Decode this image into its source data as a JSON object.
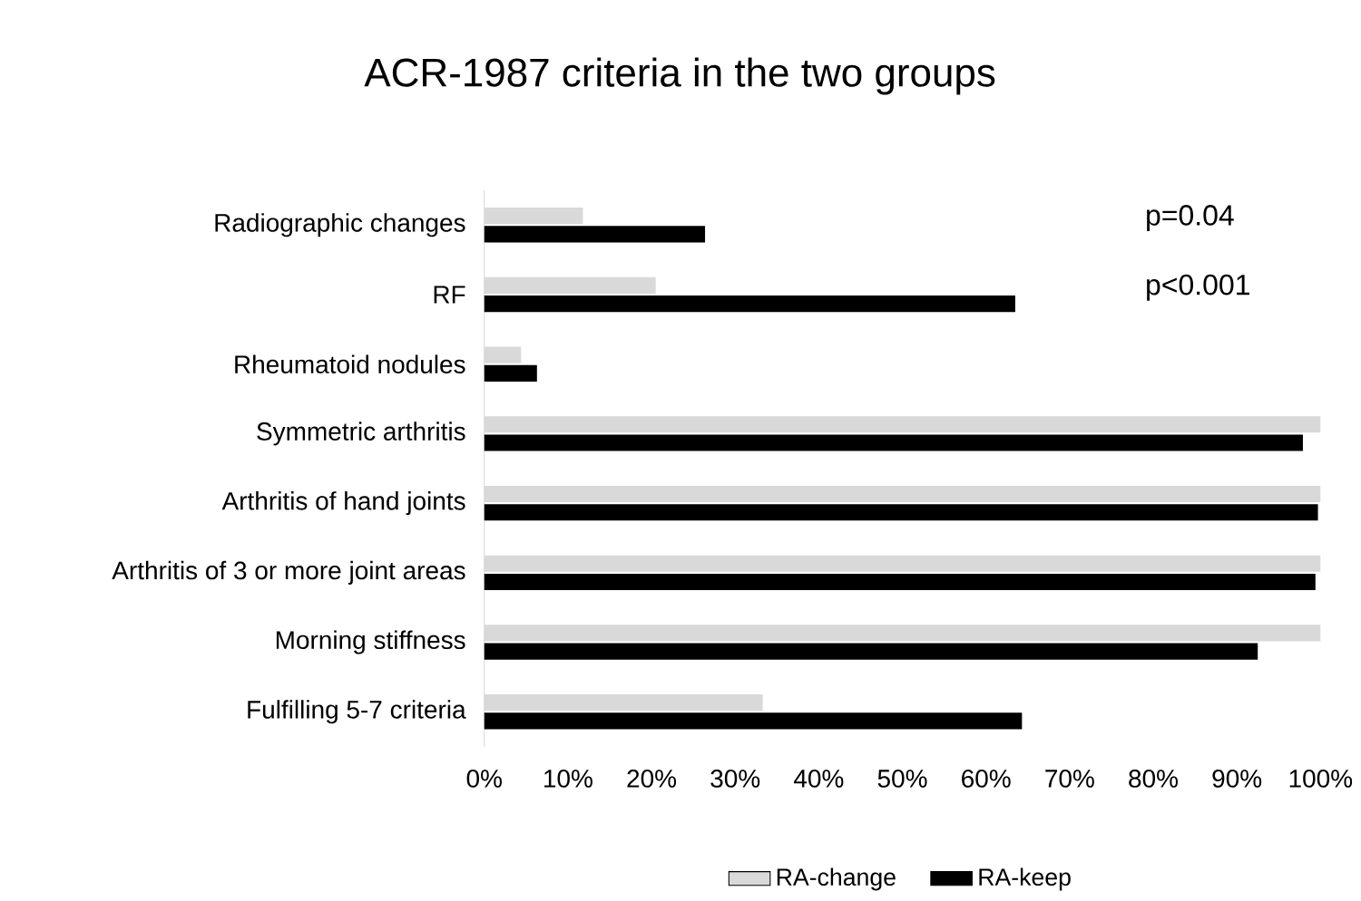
{
  "chart_data": {
    "type": "bar",
    "orientation": "horizontal",
    "title": "ACR-1987 criteria in the two groups",
    "categories": [
      "Radiographic changes",
      "RF",
      "Rheumatoid nodules",
      "Symmetric arthritis",
      "Arthritis of hand joints",
      "Arthritis of 3 or more joint areas",
      "Morning stiffness",
      "Fulfilling 5-7 criteria"
    ],
    "series": [
      {
        "name": "RA-change",
        "color": "#d9d9d9",
        "values": [
          11.8,
          20.5,
          4.4,
          100,
          100,
          100,
          100,
          33.3
        ]
      },
      {
        "name": "RA-keep",
        "color": "#000000",
        "values": [
          26.4,
          63.5,
          6.3,
          97.9,
          99.7,
          99.4,
          92.5,
          64.3
        ]
      }
    ],
    "xlim": [
      0,
      100
    ],
    "xticks": [
      {
        "value": 0,
        "label": "0%"
      },
      {
        "value": 10,
        "label": "10%"
      },
      {
        "value": 20,
        "label": "20%"
      },
      {
        "value": 30,
        "label": "30%"
      },
      {
        "value": 40,
        "label": "40%"
      },
      {
        "value": 50,
        "label": "50%"
      },
      {
        "value": 60,
        "label": "60%"
      },
      {
        "value": 70,
        "label": "70%"
      },
      {
        "value": 80,
        "label": "80%"
      },
      {
        "value": 90,
        "label": "90%"
      },
      {
        "value": 100,
        "label": "100%"
      }
    ],
    "annotations": [
      "p=0.04",
      "p<0.001"
    ],
    "legend": "bottom",
    "grid": false
  }
}
